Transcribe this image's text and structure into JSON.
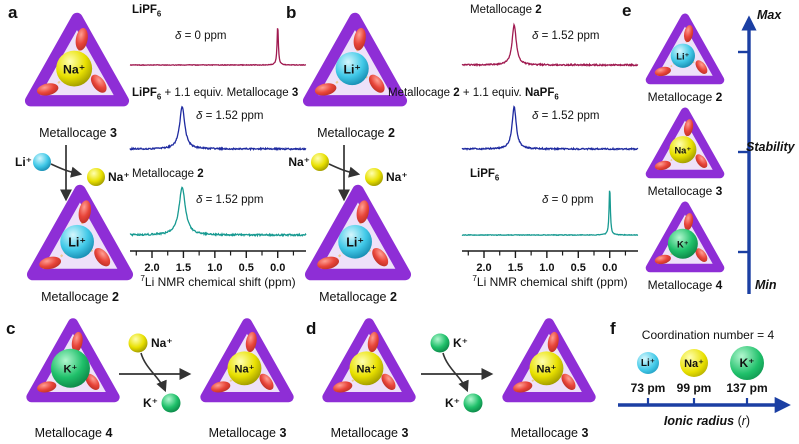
{
  "colors": {
    "cage_frame": "#8e2ed6",
    "cage_face": "#c9a2ec",
    "dash": "#eecb92",
    "arrow_dark": "#333333",
    "navy": "#1b3fa3",
    "axis_line": "#1a1a1a",
    "spectrum_crimson": "#a01a50",
    "spectrum_blue": "#1e2aa0",
    "spectrum_teal": "#179a91",
    "red_hi": "#ff9f93",
    "red_mid": "#e8453a",
    "red_dark": "#b02a20"
  },
  "ions": {
    "li": {
      "symbol": "Li⁺",
      "hi": "#d6f7fd",
      "mid": "#41c9e8",
      "dark": "#0e7fa6",
      "radius_label": "73 pm"
    },
    "na": {
      "symbol": "Na⁺",
      "hi": "#ffffb0",
      "mid": "#e8e000",
      "dark": "#8f8a00",
      "radius_label": "99 pm"
    },
    "k": {
      "symbol": "K⁺",
      "hi": "#b2f7cf",
      "mid": "#1fc06a",
      "dark": "#087a40",
      "radius_label": "137 pm"
    }
  },
  "nmr_axis": {
    "xlabel": "⁷Li NMR chemical shift (ppm)",
    "label_segments": [
      {
        "t": "7",
        "sup": 1
      },
      {
        "t": "Li NMR chemical shift (ppm)"
      }
    ],
    "tick_labels": [
      "2.0",
      "1.5",
      "1.0",
      "0.5",
      "0.0"
    ],
    "tick_ppm": [
      2.0,
      1.5,
      1.0,
      0.5,
      0.0
    ],
    "minor_step": 0.25,
    "x_range_ppm": [
      2.35,
      -0.45
    ]
  },
  "chart_data": [
    {
      "id": "a-top",
      "type": "line",
      "panel": "a",
      "title": [
        {
          "t": "LiPF",
          "b": 1
        },
        {
          "t": "6",
          "b": 1,
          "sub": 1
        }
      ],
      "color": "#a01a50",
      "x_range_ppm": [
        2.35,
        -0.45
      ],
      "peaks": [
        {
          "ppm": 0.0,
          "width_ppm": 0.012,
          "rel_height": 1
        }
      ],
      "noise": 0.3,
      "annotation": [
        {
          "t": "δ",
          "i": 1
        },
        {
          "t": " = 0 ppm"
        }
      ]
    },
    {
      "id": "a-mid",
      "type": "line",
      "panel": "a",
      "title": [
        {
          "t": "LiPF",
          "b": 1
        },
        {
          "t": "6",
          "b": 1,
          "sub": 1
        },
        {
          "t": " + 1.1 equiv. Metallocage "
        },
        {
          "t": "3",
          "b": 1
        }
      ],
      "color": "#1e2aa0",
      "x_range_ppm": [
        2.35,
        -0.45
      ],
      "peaks": [
        {
          "ppm": 1.52,
          "width_ppm": 0.05,
          "rel_height": 1
        }
      ],
      "noise": 0.75,
      "annotation": [
        {
          "t": "δ",
          "i": 1
        },
        {
          "t": " = 1.52 ppm"
        }
      ]
    },
    {
      "id": "a-bottom",
      "type": "line",
      "panel": "a",
      "title": [
        {
          "t": "Metallocage "
        },
        {
          "t": "2",
          "b": 1
        }
      ],
      "color": "#179a91",
      "x_range_ppm": [
        2.35,
        -0.45
      ],
      "peaks": [
        {
          "ppm": 1.52,
          "width_ppm": 0.06,
          "rel_height": 1
        }
      ],
      "noise": 0.8,
      "annotation": [
        {
          "t": "δ",
          "i": 1
        },
        {
          "t": " = 1.52 ppm"
        }
      ]
    },
    {
      "id": "b-top",
      "type": "line",
      "panel": "b",
      "title": [
        {
          "t": "Metallocage "
        },
        {
          "t": "2",
          "b": 1
        }
      ],
      "color": "#a01a50",
      "x_range_ppm": [
        2.35,
        -0.45
      ],
      "peaks": [
        {
          "ppm": 1.52,
          "width_ppm": 0.04,
          "rel_height": 1
        }
      ],
      "noise": 0.7,
      "annotation": [
        {
          "t": "δ",
          "i": 1
        },
        {
          "t": " = 1.52 ppm"
        }
      ]
    },
    {
      "id": "b-mid",
      "type": "line",
      "panel": "b",
      "title": [
        {
          "t": "Metallocage "
        },
        {
          "t": "2",
          "b": 1
        },
        {
          "t": " + 1.1 equiv. "
        },
        {
          "t": "NaPF",
          "b": 1
        },
        {
          "t": "6",
          "b": 1,
          "sub": 1
        }
      ],
      "color": "#1e2aa0",
      "x_range_ppm": [
        2.35,
        -0.45
      ],
      "peaks": [
        {
          "ppm": 1.52,
          "width_ppm": 0.04,
          "rel_height": 1
        }
      ],
      "noise": 0.7,
      "annotation": [
        {
          "t": "δ",
          "i": 1
        },
        {
          "t": " = 1.52 ppm"
        }
      ]
    },
    {
      "id": "b-bottom",
      "type": "line",
      "panel": "b",
      "title": [
        {
          "t": "LiPF",
          "b": 1
        },
        {
          "t": "6",
          "b": 1,
          "sub": 1
        }
      ],
      "color": "#179a91",
      "x_range_ppm": [
        2.35,
        -0.45
      ],
      "peaks": [
        {
          "ppm": 0.0,
          "width_ppm": 0.012,
          "rel_height": 1
        }
      ],
      "noise": 0.3,
      "annotation": [
        {
          "t": "δ",
          "i": 1
        },
        {
          "t": " = 0 ppm"
        }
      ]
    }
  ],
  "panels": {
    "a": {
      "tag": "a",
      "top_cage": {
        "ion": "na",
        "ion_r": 19,
        "label": [
          {
            "t": "Metallocage "
          },
          {
            "t": "3",
            "b": 1
          }
        ]
      },
      "bottom_cage": {
        "ion": "li",
        "ion_r": 17.5,
        "label": [
          {
            "t": "Metallocage "
          },
          {
            "t": "2",
            "b": 1
          }
        ]
      },
      "exchange": {
        "in_ion": "li",
        "out_ion": "na"
      }
    },
    "b": {
      "tag": "b",
      "top_cage": {
        "ion": "li",
        "ion_r": 17.5,
        "label": [
          {
            "t": "Metallocage "
          },
          {
            "t": "2",
            "b": 1
          }
        ]
      },
      "bottom_cage": {
        "ion": "li",
        "ion_r": 17.5,
        "label": [
          {
            "t": "Metallocage "
          },
          {
            "t": "2",
            "b": 1
          }
        ]
      },
      "exchange": {
        "in_ion": "na",
        "out_ion": "na"
      }
    },
    "c": {
      "tag": "c",
      "left_cage": {
        "ion": "k",
        "ion_r": 23,
        "label": [
          {
            "t": "Metallocage "
          },
          {
            "t": "4",
            "b": 1
          }
        ]
      },
      "right_cage": {
        "ion": "na",
        "ion_r": 20,
        "label": [
          {
            "t": "Metallocage "
          },
          {
            "t": "3",
            "b": 1
          }
        ]
      },
      "exchange": {
        "in_ion": "na",
        "out_ion": "k"
      }
    },
    "d": {
      "tag": "d",
      "left_cage": {
        "ion": "na",
        "ion_r": 20,
        "label": [
          {
            "t": "Metallocage "
          },
          {
            "t": "3",
            "b": 1
          }
        ]
      },
      "right_cage": {
        "ion": "na",
        "ion_r": 20,
        "label": [
          {
            "t": "Metallocage "
          },
          {
            "t": "3",
            "b": 1
          }
        ]
      },
      "exchange": {
        "in_ion": "k",
        "out_ion": "k"
      }
    },
    "e": {
      "tag": "e",
      "cages": [
        {
          "ion": "li",
          "ion_r": 17,
          "label": [
            {
              "t": "Metallocage "
            },
            {
              "t": "2",
              "b": 1
            }
          ]
        },
        {
          "ion": "na",
          "ion_r": 19,
          "label": [
            {
              "t": "Metallocage "
            },
            {
              "t": "3",
              "b": 1
            }
          ]
        },
        {
          "ion": "k",
          "ion_r": 21,
          "label": [
            {
              "t": "Metallocage "
            },
            {
              "t": "4",
              "b": 1
            }
          ]
        }
      ],
      "axis": {
        "max": "Max",
        "mid": "Stability",
        "min": "Min"
      }
    },
    "f": {
      "tag": "f",
      "title": "Coordination number = 4",
      "axis_label": [
        {
          "t": "Ionic radius ",
          "b": 1,
          "i": 1
        },
        {
          "t": "("
        },
        {
          "t": "r",
          "i": 1
        },
        {
          "t": ")"
        }
      ]
    }
  }
}
